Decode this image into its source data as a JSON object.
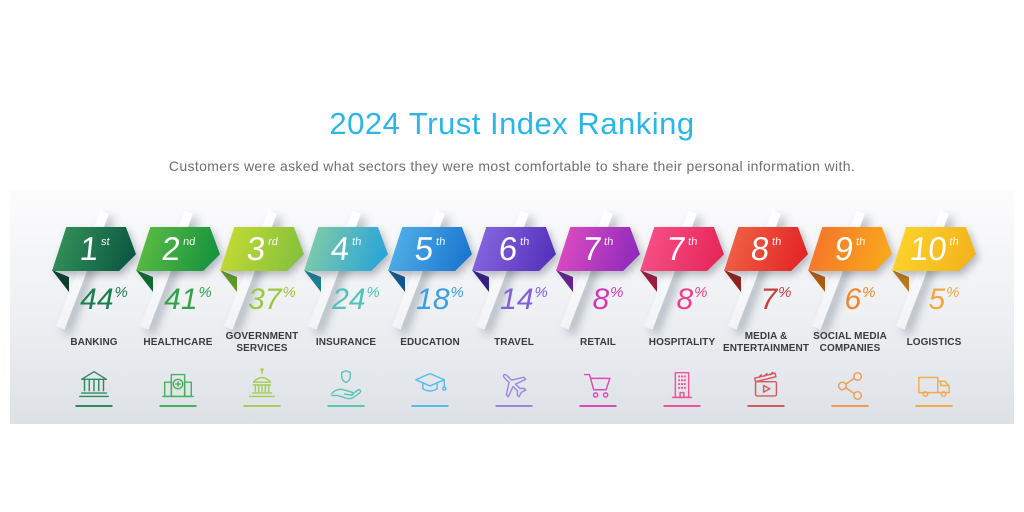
{
  "header": {
    "title": "2024 Trust Index Ranking",
    "subtitle": "Customers were asked what sectors they were most comfortable to share their personal information with."
  },
  "colors": {
    "accent": "#2bb6e6",
    "label_text": "#3b3b3b",
    "subtitle_text": "#6f6f6f"
  },
  "chart_data": {
    "type": "bar",
    "title": "2024 Trust Index Ranking",
    "subtitle": "Customers were asked what sectors they were most comfortable to share their personal information with.",
    "categories": [
      "Banking",
      "Healthcare",
      "Government Services",
      "Insurance",
      "Education",
      "Travel",
      "Retail",
      "Hospitality",
      "Media & Entertainment",
      "Social Media Companies",
      "Logistics"
    ],
    "values": [
      44,
      41,
      37,
      24,
      18,
      14,
      8,
      8,
      7,
      6,
      5
    ],
    "ranks": [
      "1st",
      "2nd",
      "3rd",
      "4th",
      "5th",
      "6th",
      "7th",
      "7th",
      "8th",
      "9th",
      "10th"
    ],
    "unit": "%",
    "legend": "none",
    "grid": false
  },
  "sectors": [
    {
      "rank": "1",
      "ordinal": "st",
      "percent": "44",
      "percent_sign": "%",
      "label_lines": [
        "BANKING"
      ],
      "icon": "bank-icon",
      "grad_start": "#36975a",
      "grad_end": "#0c5742",
      "fold": "#0a3f2f",
      "percent_color": "#1d7c50",
      "icon_color": "#2d8a60"
    },
    {
      "rank": "2",
      "ordinal": "nd",
      "percent": "41",
      "percent_sign": "%",
      "label_lines": [
        "HEALTHCARE"
      ],
      "icon": "hospital-icon",
      "grad_start": "#61c044",
      "grad_end": "#17923f",
      "fold": "#0e6b2d",
      "percent_color": "#33a348",
      "icon_color": "#47b15e"
    },
    {
      "rank": "3",
      "ordinal": "rd",
      "percent": "37",
      "percent_sign": "%",
      "label_lines": [
        "GOVERNMENT",
        "SERVICES"
      ],
      "icon": "government-icon",
      "grad_start": "#c9dc33",
      "grad_end": "#85c13c",
      "fold": "#5f9a28",
      "percent_color": "#9bc93e",
      "icon_color": "#a5ce54"
    },
    {
      "rank": "4",
      "ordinal": "th",
      "percent": "24",
      "percent_sign": "%",
      "label_lines": [
        "INSURANCE"
      ],
      "icon": "insurance-icon",
      "grad_start": "#88cfa2",
      "grad_end": "#2aa4d8",
      "fold": "#1b7f92",
      "percent_color": "#54c2ba",
      "icon_color": "#5cc4b8"
    },
    {
      "rank": "5",
      "ordinal": "th",
      "percent": "18",
      "percent_sign": "%",
      "label_lines": [
        "EDUCATION"
      ],
      "icon": "education-icon",
      "grad_start": "#55b5e8",
      "grad_end": "#1b76d1",
      "fold": "#13568f",
      "percent_color": "#3ba0e2",
      "icon_color": "#55bbe9"
    },
    {
      "rank": "6",
      "ordinal": "th",
      "percent": "14",
      "percent_sign": "%",
      "label_lines": [
        "TRAVEL"
      ],
      "icon": "plane-icon",
      "grad_start": "#8a6ce2",
      "grad_end": "#5531bc",
      "fold": "#371f85",
      "percent_color": "#7e60d8",
      "icon_color": "#9c88de"
    },
    {
      "rank": "7",
      "ordinal": "th",
      "percent": "8",
      "percent_sign": "%",
      "label_lines": [
        "RETAIL"
      ],
      "icon": "cart-icon",
      "grad_start": "#e44fc0",
      "grad_end": "#8f2abc",
      "fold": "#66208f",
      "percent_color": "#d438b6",
      "icon_color": "#da4ab8"
    },
    {
      "rank": "7",
      "ordinal": "th",
      "percent": "8",
      "percent_sign": "%",
      "label_lines": [
        "HOSPITALITY"
      ],
      "icon": "hotel-icon",
      "grad_start": "#f8558c",
      "grad_end": "#e62658",
      "fold": "#9e1b3d",
      "percent_color": "#ee3f8a",
      "icon_color": "#ef5398"
    },
    {
      "rank": "8",
      "ordinal": "th",
      "percent": "7",
      "percent_sign": "%",
      "label_lines": [
        "MEDIA &",
        "ENTERTAINMENT"
      ],
      "icon": "clapperboard-icon",
      "grad_start": "#f26749",
      "grad_end": "#e32525",
      "fold": "#8f2318",
      "percent_color": "#c5403a",
      "icon_color": "#d15b60"
    },
    {
      "rank": "9",
      "ordinal": "th",
      "percent": "6",
      "percent_sign": "%",
      "label_lines": [
        "SOCIAL MEDIA",
        "COMPANIES"
      ],
      "icon": "share-icon",
      "grad_start": "#f4702d",
      "grad_end": "#f9a81c",
      "fold": "#ad5c12",
      "percent_color": "#f08630",
      "icon_color": "#f09c54"
    },
    {
      "rank": "10",
      "ordinal": "th",
      "percent": "5",
      "percent_sign": "%",
      "label_lines": [
        "LOGISTICS"
      ],
      "icon": "truck-icon",
      "grad_start": "#fdd62c",
      "grad_end": "#f3b31c",
      "fold": "#b8791a",
      "percent_color": "#f2a93c",
      "icon_color": "#f0ab4e"
    }
  ]
}
